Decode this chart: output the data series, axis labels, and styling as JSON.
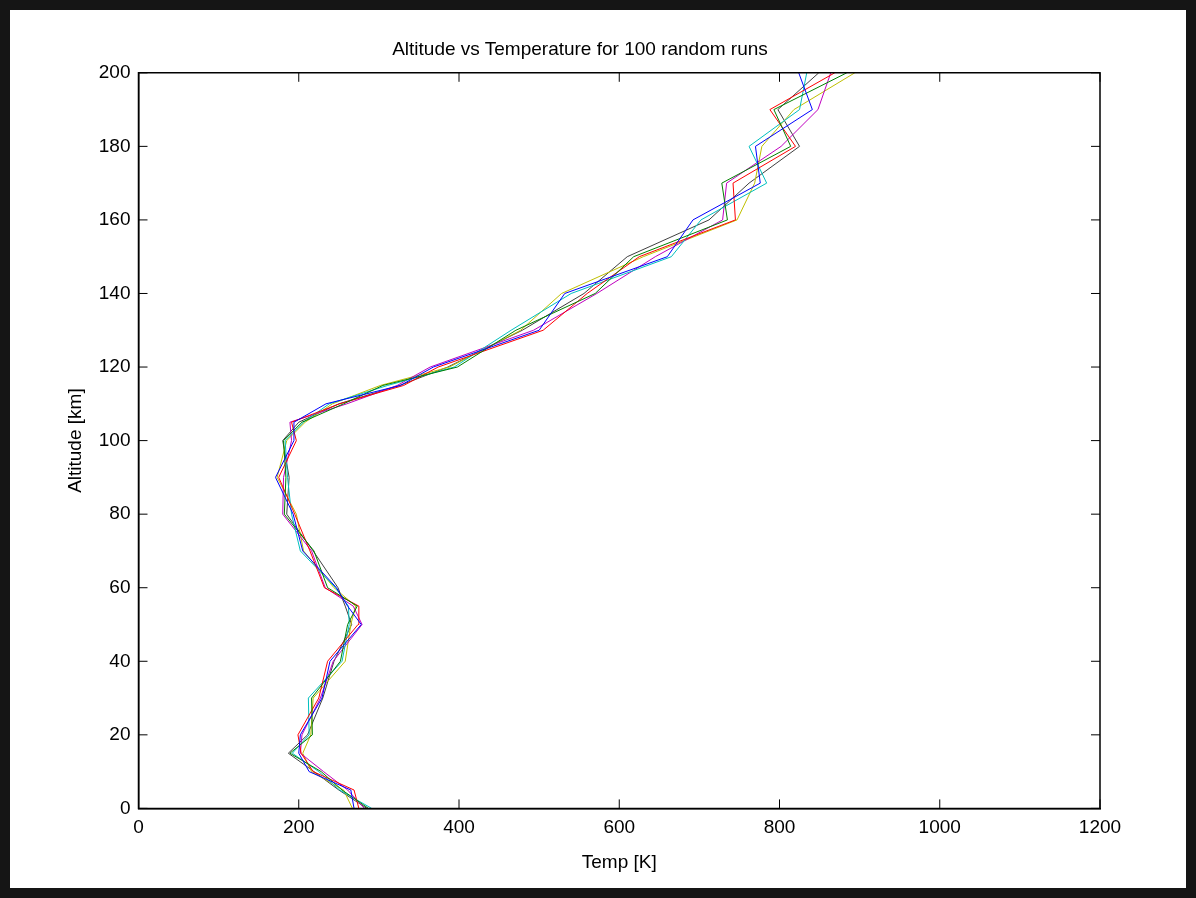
{
  "chart_data": {
    "type": "line",
    "title": "Altitude vs Temperature for 100 random runs",
    "xlabel": "Temp [K]",
    "ylabel": "Altitude [km]",
    "xlim": [
      0,
      1200
    ],
    "xticks": [
      0,
      200,
      400,
      600,
      800,
      1000,
      1200
    ],
    "ylim": [
      0,
      200
    ],
    "yticks": [
      0,
      20,
      40,
      60,
      80,
      100,
      120,
      140,
      160,
      180,
      200
    ],
    "grid": false,
    "legend": false,
    "marker": "none",
    "line_style": "solid",
    "series": [
      {
        "color": "#0000ff",
        "x": [
          269,
          265,
          213,
          200,
          202,
          229,
          239,
          278,
          261,
          247,
          205,
          193,
          171,
          194,
          194,
          234,
          327,
          368,
          500,
          532,
          660,
          692,
          776,
          770,
          841,
          824
        ],
        "values": [
          0,
          5,
          10,
          15,
          20,
          30,
          40,
          50,
          55,
          60,
          70,
          80,
          90,
          100,
          105,
          110,
          115,
          120,
          130,
          140,
          150,
          160,
          170,
          180,
          190,
          200
        ]
      },
      {
        "color": "#008000",
        "x": [
          287,
          254,
          228,
          189,
          217,
          216,
          252,
          261,
          273,
          236,
          219,
          182,
          184,
          181,
          204,
          256,
          305,
          398,
          471,
          570,
          618,
          735,
          728,
          814,
          793,
          884
        ],
        "values": [
          0,
          5,
          10,
          15,
          20,
          30,
          40,
          50,
          55,
          60,
          70,
          80,
          90,
          100,
          105,
          110,
          115,
          120,
          130,
          140,
          150,
          160,
          170,
          180,
          190,
          200
        ]
      },
      {
        "color": "#ff0000",
        "x": [
          275,
          269,
          218,
          203,
          199,
          225,
          236,
          274,
          275,
          232,
          214,
          195,
          175,
          197,
          191,
          251,
          331,
          374,
          505,
          560,
          625,
          745,
          742,
          820,
          788,
          869
        ],
        "values": [
          0,
          5,
          10,
          15,
          20,
          30,
          40,
          50,
          55,
          60,
          70,
          80,
          90,
          100,
          105,
          110,
          115,
          120,
          130,
          140,
          150,
          160,
          170,
          180,
          190,
          200
        ]
      },
      {
        "color": "#00bfbf",
        "x": [
          291,
          251,
          225,
          192,
          213,
          212,
          254,
          263,
          262,
          246,
          202,
          191,
          186,
          183,
          206,
          238,
          311,
          394,
          465,
          540,
          665,
          702,
          784,
          762,
          825,
          834
        ],
        "values": [
          0,
          5,
          10,
          15,
          20,
          30,
          40,
          50,
          55,
          60,
          70,
          80,
          90,
          100,
          105,
          110,
          115,
          120,
          130,
          140,
          150,
          160,
          170,
          180,
          190,
          200
        ]
      },
      {
        "color": "#bf00bf",
        "x": [
          282,
          261,
          231,
          202,
          204,
          227,
          243,
          279,
          268,
          233,
          216,
          180,
          181,
          191,
          189,
          260,
          323,
          364,
          493,
          572,
          645,
          729,
          734,
          802,
          848,
          864
        ],
        "values": [
          0,
          5,
          10,
          15,
          20,
          30,
          40,
          50,
          55,
          60,
          70,
          80,
          90,
          100,
          105,
          110,
          115,
          120,
          130,
          140,
          150,
          160,
          170,
          180,
          190,
          200
        ]
      },
      {
        "color": "#bfbf00",
        "x": [
          267,
          256,
          216,
          205,
          215,
          218,
          258,
          265,
          271,
          244,
          206,
          197,
          173,
          185,
          208,
          242,
          302,
          388,
          477,
          528,
          630,
          747,
          769,
          778,
          818,
          894
        ],
        "values": [
          0,
          5,
          10,
          15,
          20,
          30,
          40,
          50,
          55,
          60,
          70,
          80,
          90,
          100,
          105,
          110,
          115,
          120,
          130,
          140,
          150,
          160,
          170,
          180,
          190,
          200
        ]
      },
      {
        "color": "#404040",
        "x": [
          285,
          250,
          219,
          187,
          211,
          230,
          244,
          266,
          258,
          249,
          218,
          185,
          188,
          180,
          200,
          250,
          326,
          386,
          479,
          556,
          610,
          712,
          762,
          825,
          798,
          849
        ],
        "values": [
          0,
          5,
          10,
          15,
          20,
          30,
          40,
          50,
          55,
          60,
          70,
          80,
          90,
          100,
          105,
          110,
          115,
          120,
          130,
          140,
          150,
          160,
          170,
          180,
          190,
          200
        ]
      }
    ]
  }
}
